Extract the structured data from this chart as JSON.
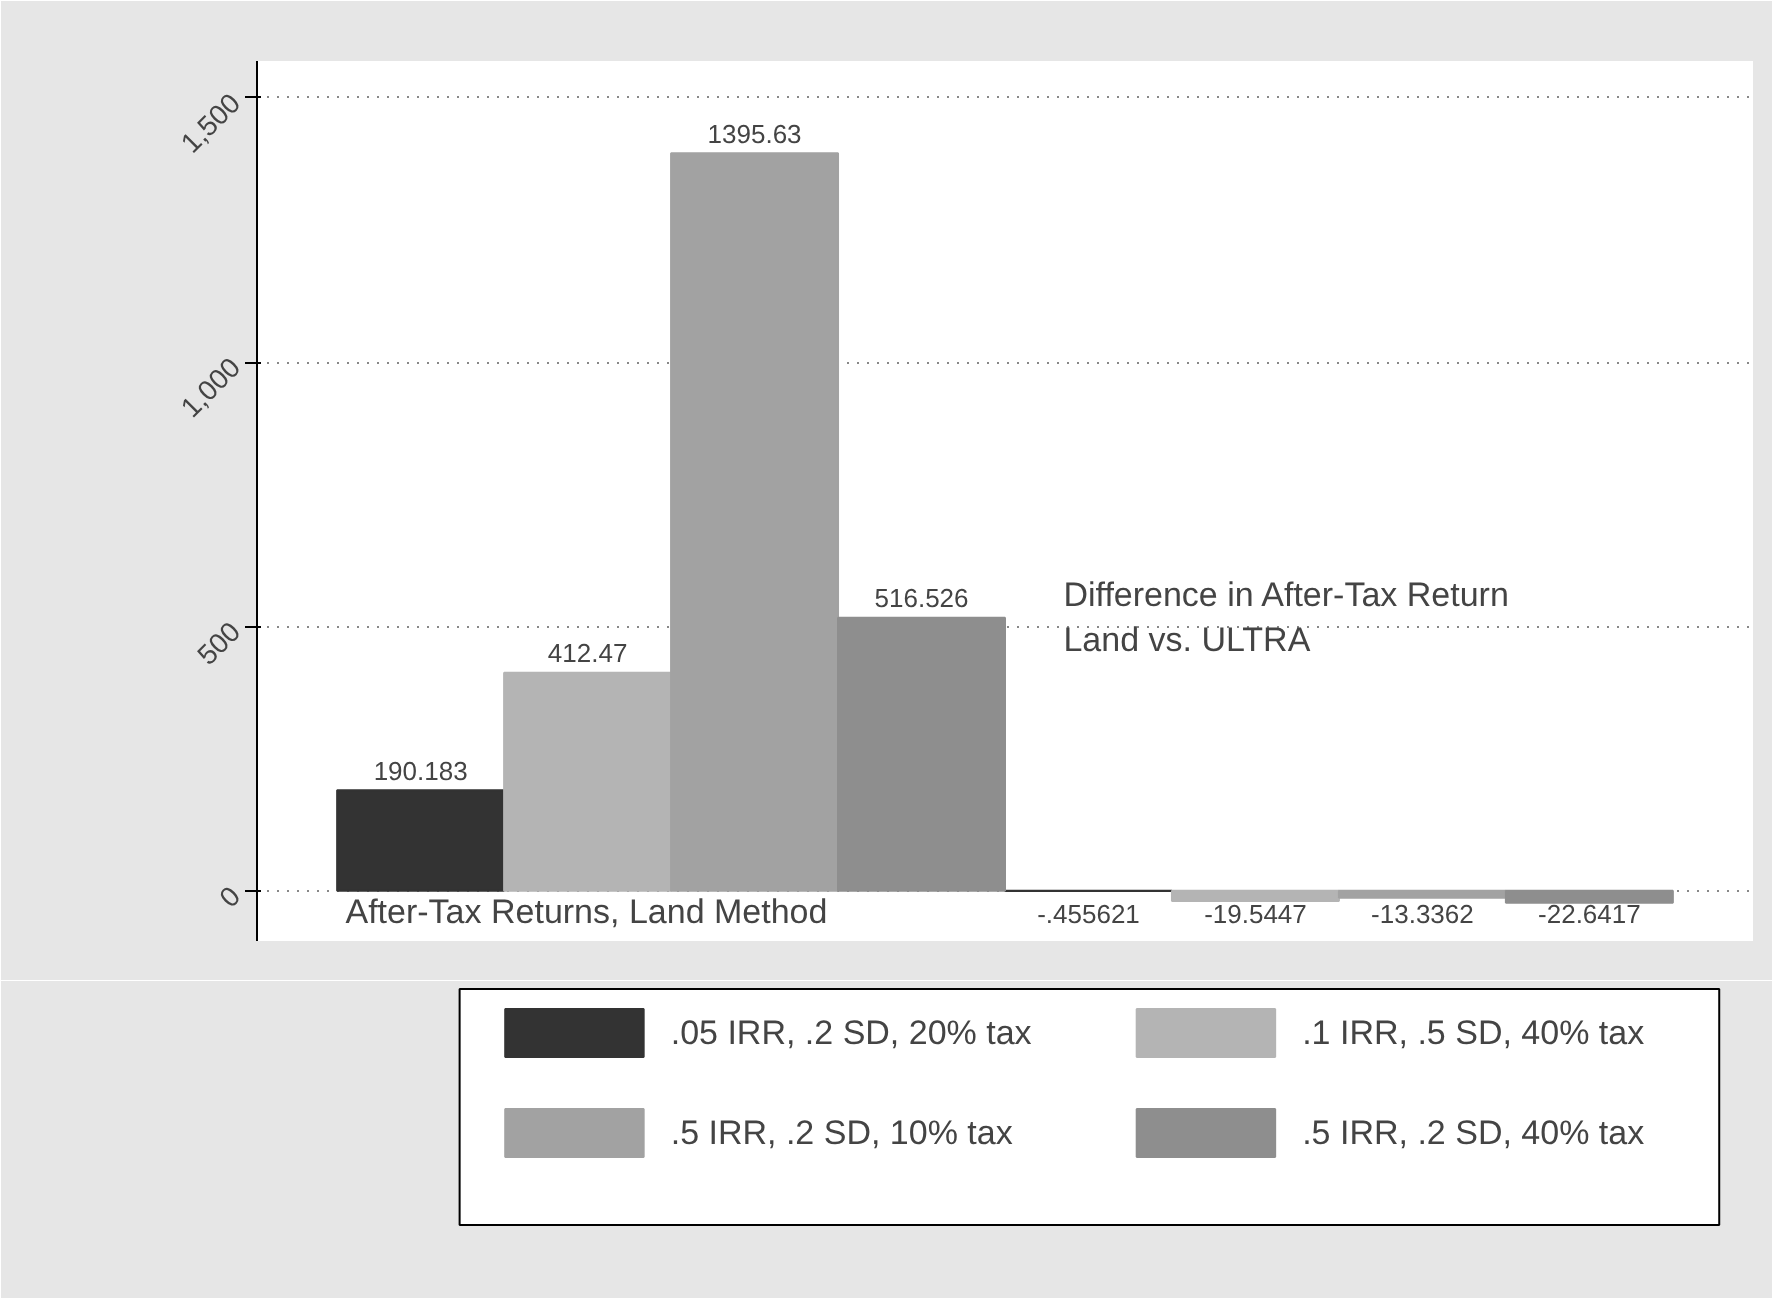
{
  "chart_data": {
    "type": "bar",
    "categories": [
      "After-Tax Returns, Land Method",
      "Difference in After-Tax Return\nLand vs. ULTRA"
    ],
    "series": [
      {
        "name": ".05 IRR, .2 SD, 20% tax",
        "color": "#333333",
        "values": [
          190.183,
          -0.455621
        ],
        "value_labels": [
          "190.183",
          "-.455621"
        ]
      },
      {
        "name": ".1 IRR, .5 SD, 40% tax",
        "color": "#b4b4b4",
        "values": [
          412.47,
          -19.5447
        ],
        "value_labels": [
          "412.47",
          "-19.5447"
        ]
      },
      {
        "name": ".5 IRR, .2 SD, 10% tax",
        "color": "#a2a2a2",
        "values": [
          1395.63,
          -13.3362
        ],
        "value_labels": [
          "1395.63",
          "-13.3362"
        ]
      },
      {
        "name": ".5 IRR, .2 SD, 40% tax",
        "color": "#8e8e8e",
        "values": [
          516.526,
          -22.6417
        ],
        "value_labels": [
          "516.526",
          "-22.6417"
        ]
      }
    ],
    "ylim": [
      -95,
      1570
    ],
    "yticks": [
      {
        "value": 0,
        "label": "0"
      },
      {
        "value": 500,
        "label": "500"
      },
      {
        "value": 1000,
        "label": "1,000"
      },
      {
        "value": 1500,
        "label": "1,500"
      }
    ],
    "grid": "y",
    "legend": "bottom"
  }
}
